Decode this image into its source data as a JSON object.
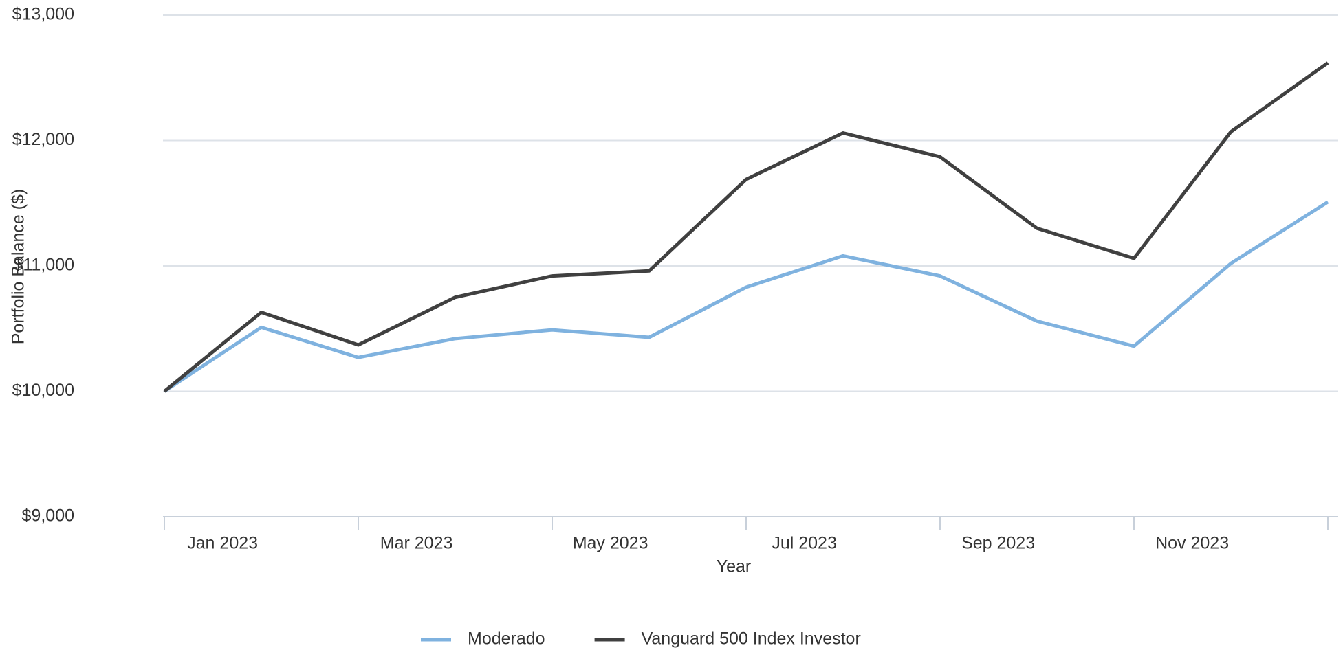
{
  "chart_data": {
    "type": "line",
    "x_label": "Year",
    "y_label": "Portfolio Balance ($)",
    "categories": [
      "Jan 2023",
      null,
      "Mar 2023",
      null,
      "May 2023",
      null,
      "Jul 2023",
      null,
      "Sep 2023",
      null,
      "Nov 2023",
      null,
      null
    ],
    "series": [
      {
        "name": "Moderado",
        "color": "#7fb2df",
        "values": [
          10000,
          10510,
          10270,
          10420,
          10490,
          10430,
          10830,
          11080,
          10920,
          10560,
          10360,
          11020,
          11510
        ]
      },
      {
        "name": "Vanguard 500 Index Investor",
        "color": "#404040",
        "values": [
          10000,
          10630,
          10370,
          10750,
          10920,
          10960,
          11690,
          12060,
          11870,
          11300,
          11060,
          12070,
          12620
        ]
      }
    ],
    "ylim": [
      9000,
      13000
    ],
    "yticks": [
      {
        "value": 9000,
        "label": "$9,000"
      },
      {
        "value": 10000,
        "label": "$10,000"
      },
      {
        "value": 11000,
        "label": "$11,000"
      },
      {
        "value": 12000,
        "label": "$12,000"
      },
      {
        "value": 13000,
        "label": "$13,000"
      }
    ],
    "grid": true,
    "legend": "bottom"
  }
}
